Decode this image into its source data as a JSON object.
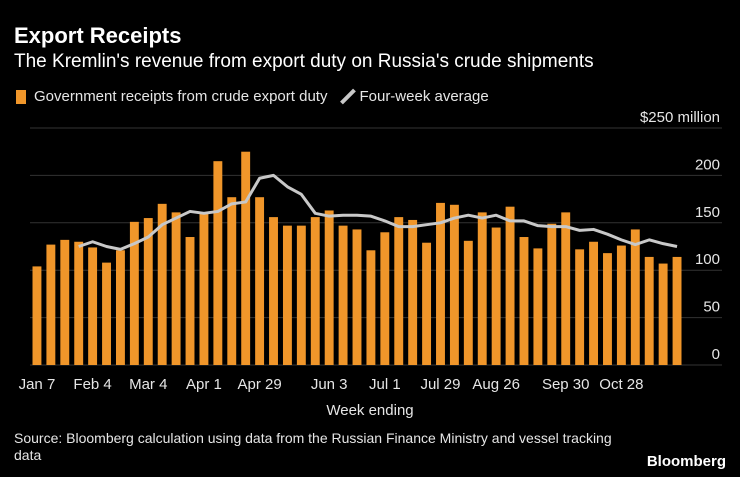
{
  "chart_data": {
    "type": "bar",
    "title": "Export Receipts",
    "subtitle": "The Kremlin's revenue from export duty on Russia's crude shipments",
    "x_label": "Week ending",
    "source": "Source: Bloomberg calculation using data from the Russian Finance Ministry and vessel tracking data",
    "brand": "Bloomberg",
    "categories": [
      "Jan 7",
      null,
      null,
      null,
      "Feb 4",
      null,
      null,
      null,
      "Mar 4",
      null,
      null,
      null,
      "Apr 1",
      null,
      null,
      null,
      "Apr 29",
      null,
      null,
      null,
      null,
      "Jun 3",
      null,
      null,
      null,
      "Jul 1",
      null,
      null,
      null,
      "Jul 29",
      null,
      null,
      null,
      "Aug 26",
      null,
      null,
      null,
      null,
      "Sep 30",
      null,
      null,
      null,
      "Oct 28",
      null,
      null,
      null,
      null
    ],
    "series": [
      {
        "name": "Government receipts from crude export duty",
        "color": "#f0962a",
        "type": "bar",
        "values": [
          104,
          127,
          132,
          130,
          124,
          108,
          121,
          151,
          155,
          170,
          161,
          135,
          160,
          215,
          177,
          225,
          177,
          156,
          147,
          147,
          156,
          163,
          147,
          143,
          121,
          140,
          156,
          153,
          129,
          171,
          169,
          131,
          161,
          145,
          167,
          135,
          123,
          149,
          161,
          122,
          130,
          118,
          126,
          143,
          114,
          107,
          114
        ]
      },
      {
        "name": "Four-week average",
        "color": "#c8c8c8",
        "type": "line",
        "values": [
          null,
          null,
          null,
          125,
          130,
          125,
          122,
          128,
          135,
          148,
          155,
          162,
          160,
          162,
          170,
          172,
          197,
          200,
          188,
          180,
          160,
          157,
          158,
          158,
          157,
          152,
          146,
          146,
          148,
          150,
          155,
          158,
          155,
          158,
          152,
          152,
          147,
          146,
          146,
          142,
          143,
          138,
          132,
          127,
          132,
          128,
          125
        ]
      }
    ],
    "ylim": [
      0,
      250
    ],
    "yticks": [
      0,
      50,
      100,
      150,
      200,
      {
        "value": 250,
        "label": "$250 million"
      }
    ],
    "grid": true
  }
}
